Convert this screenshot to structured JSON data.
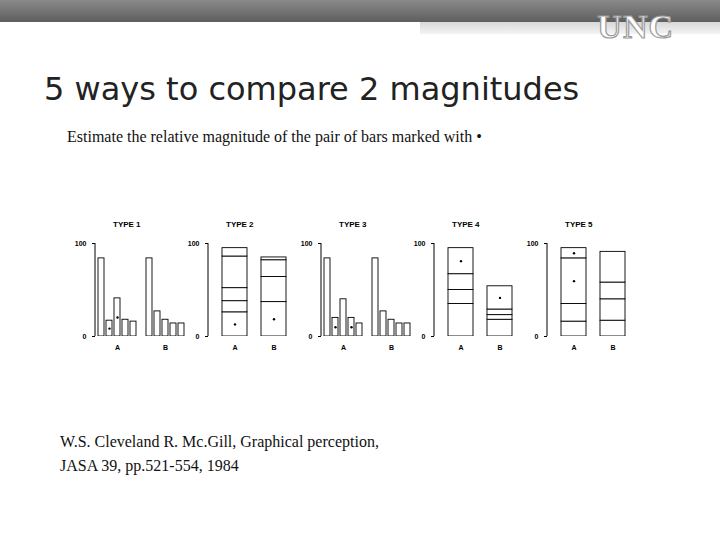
{
  "slide": {
    "logo": "UNC",
    "title": "5 ways to compare 2 magnitudes",
    "instruction": "Estimate the relative magnitude of the pair of bars marked with •",
    "citation": [
      "W.S. Cleveland R. Mc.Gill, Graphical perception,",
      "JASA 39, pp.521-554, 1984"
    ]
  },
  "chart_data": [
    {
      "type": "bar",
      "title": "TYPE 1",
      "categories": [
        null,
        null,
        "A",
        null,
        null,
        null,
        null,
        null,
        "B",
        null,
        null
      ],
      "values": [
        84,
        17,
        41,
        18,
        16,
        null,
        84,
        27,
        18,
        14,
        14
      ],
      "marked": [
        false,
        true,
        true,
        false,
        false,
        false,
        false,
        false,
        false,
        false,
        false
      ],
      "color": "#ffffff",
      "ylim": [
        0,
        100
      ],
      "yticks": [
        0,
        100
      ]
    },
    {
      "type": "bar",
      "stacked": true,
      "title": "TYPE 2",
      "categories": [
        "A",
        "B"
      ],
      "values": [
        [
          26,
          12,
          14,
          34,
          9
        ],
        [
          37,
          27,
          18,
          3
        ]
      ],
      "marked": [
        [
          true,
          false,
          false,
          false,
          false
        ],
        [
          true,
          false,
          false,
          false
        ]
      ],
      "color": "#ffffff",
      "ylim": [
        0,
        100
      ],
      "yticks": [
        0,
        100
      ]
    },
    {
      "type": "bar",
      "title": "TYPE 3",
      "categories": [
        null,
        null,
        "A",
        null,
        null,
        null,
        null,
        null,
        "B",
        null,
        null
      ],
      "values": [
        84,
        20,
        40,
        20,
        14,
        null,
        84,
        27,
        18,
        14,
        14
      ],
      "marked": [
        false,
        true,
        false,
        true,
        false,
        false,
        false,
        false,
        false,
        false,
        false
      ],
      "color": "#ffffff",
      "ylim": [
        0,
        100
      ],
      "yticks": [
        0,
        100
      ]
    },
    {
      "type": "bar",
      "stacked": true,
      "title": "TYPE 4",
      "categories": [
        "A",
        "B"
      ],
      "values": [
        [
          35,
          15,
          17,
          28
        ],
        [
          18,
          5,
          6,
          25
        ]
      ],
      "marked": [
        [
          false,
          false,
          false,
          true
        ],
        [
          false,
          false,
          false,
          true
        ]
      ],
      "color": "#ffffff",
      "ylim": [
        0,
        100
      ],
      "yticks": [
        0,
        100
      ]
    },
    {
      "type": "bar",
      "stacked": true,
      "title": "TYPE 5",
      "categories": [
        "A",
        "B"
      ],
      "values": [
        [
          16,
          19,
          49,
          11
        ],
        [
          17,
          23,
          18,
          33
        ]
      ],
      "marked": [
        [
          false,
          false,
          true,
          true
        ],
        [
          false,
          false,
          false,
          false
        ]
      ],
      "color": "#ffffff",
      "ylim": [
        0,
        100
      ],
      "yticks": [
        0,
        100
      ]
    }
  ]
}
